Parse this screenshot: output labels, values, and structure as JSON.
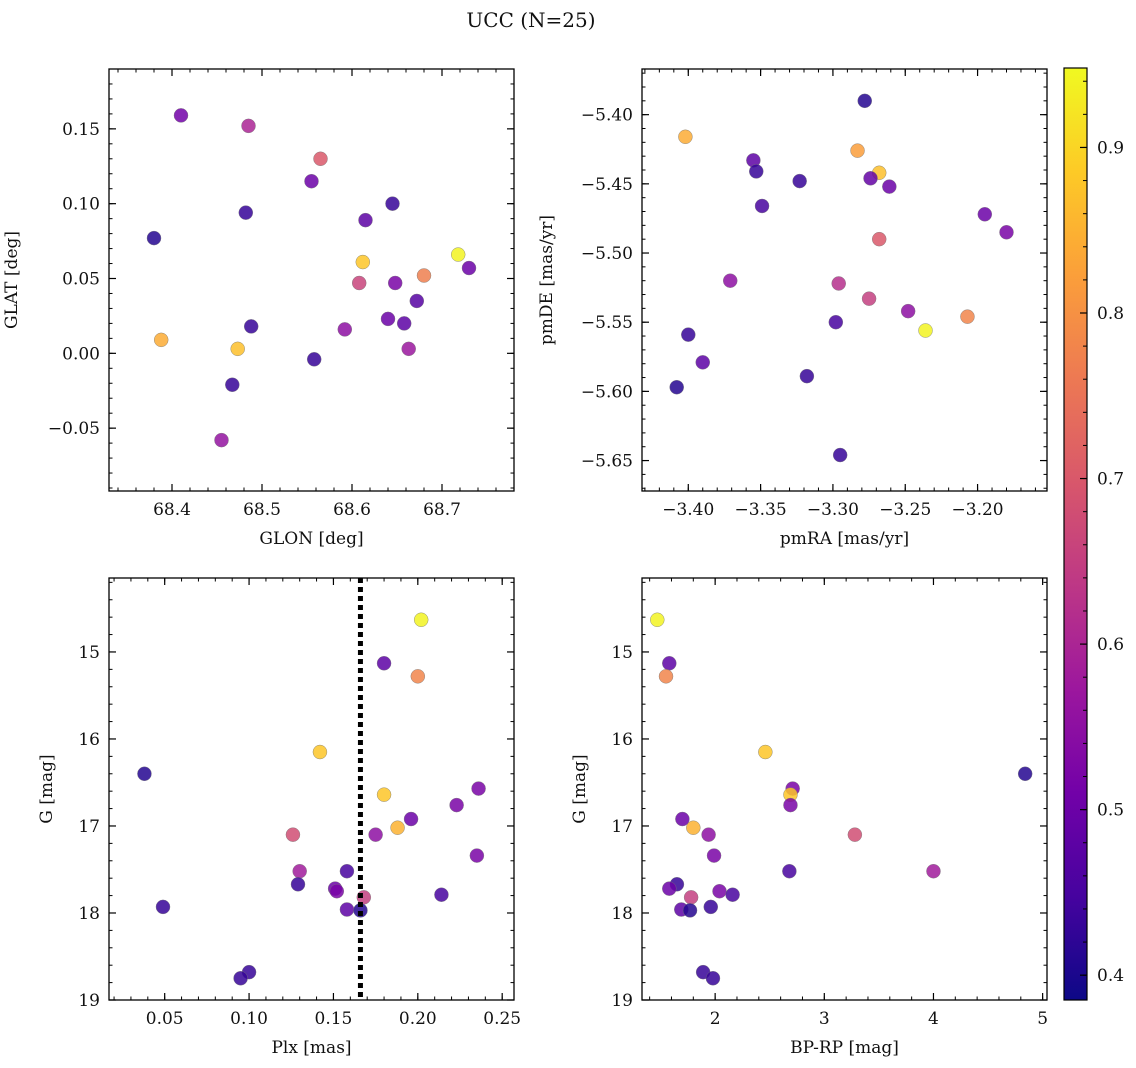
{
  "figure": {
    "title": "UCC (N=25)"
  },
  "colorbar": {
    "min": 0.385,
    "max": 0.948,
    "ticks": [
      0.4,
      0.5,
      0.6,
      0.7,
      0.8,
      0.9
    ],
    "tick_labels": [
      "0.4",
      "0.5",
      "0.6",
      "0.7",
      "0.8",
      "0.9"
    ],
    "colormap": "plasma"
  },
  "colormap_stops": [
    "#0d0887",
    "#46039f",
    "#7201a8",
    "#9c179e",
    "#bd3786",
    "#d8576b",
    "#ed7953",
    "#fb9f3a",
    "#fdca26",
    "#f0f921"
  ],
  "chart_data": [
    {
      "type": "scatter",
      "title": "",
      "xlabel": "GLON [deg]",
      "ylabel": "GLAT [deg]",
      "xlim": [
        68.33,
        68.78
      ],
      "ylim": [
        -0.092,
        0.19
      ],
      "xticks": [
        68.4,
        68.5,
        68.6,
        68.7
      ],
      "xtick_labels": [
        "68.4",
        "68.5",
        "68.6",
        "68.7"
      ],
      "yticks": [
        -0.05,
        0.0,
        0.05,
        0.1,
        0.15
      ],
      "ytick_labels": [
        "−0.05",
        "0.00",
        "0.05",
        "0.10",
        "0.15"
      ],
      "x": [
        68.41,
        68.485,
        68.565,
        68.555,
        68.38,
        68.482,
        68.645,
        68.615,
        68.718,
        68.73,
        68.612,
        68.608,
        68.68,
        68.648,
        68.672,
        68.64,
        68.658,
        68.592,
        68.488,
        68.663,
        68.388,
        68.473,
        68.558,
        68.467,
        68.455
      ],
      "y": [
        0.159,
        0.152,
        0.13,
        0.115,
        0.077,
        0.094,
        0.1,
        0.089,
        0.066,
        0.057,
        0.061,
        0.047,
        0.052,
        0.047,
        0.035,
        0.023,
        0.02,
        0.016,
        0.018,
        0.003,
        0.009,
        0.003,
        -0.004,
        -0.021,
        -0.058
      ],
      "c": [
        0.51,
        0.6,
        0.7,
        0.5,
        0.41,
        0.43,
        0.43,
        0.48,
        0.94,
        0.5,
        0.88,
        0.66,
        0.77,
        0.52,
        0.47,
        0.5,
        0.48,
        0.55,
        0.43,
        0.57,
        0.84,
        0.87,
        0.43,
        0.43,
        0.56
      ]
    },
    {
      "type": "scatter",
      "title": "",
      "xlabel": "pmRA [mas/yr]",
      "ylabel": "pmDE [mas/yr]",
      "xlim": [
        -3.432,
        -3.152
      ],
      "ylim": [
        -5.672,
        -5.367
      ],
      "xticks": [
        -3.4,
        -3.35,
        -3.3,
        -3.25,
        -3.2
      ],
      "xtick_labels": [
        "−3.40",
        "−3.35",
        "−3.30",
        "−3.25",
        "−3.20"
      ],
      "yticks": [
        -5.65,
        -5.6,
        -5.55,
        -5.5,
        -5.45,
        -5.4
      ],
      "ytick_labels": [
        "−5.65",
        "−5.60",
        "−5.55",
        "−5.50",
        "−5.45",
        "−5.40"
      ],
      "x": [
        -3.278,
        -3.402,
        -3.283,
        -3.268,
        -3.355,
        -3.353,
        -3.323,
        -3.274,
        -3.261,
        -3.349,
        -3.195,
        -3.18,
        -3.268,
        -3.371,
        -3.296,
        -3.275,
        -3.248,
        -3.236,
        -3.207,
        -3.298,
        -3.4,
        -3.39,
        -3.318,
        -3.408,
        -3.295
      ],
      "y": [
        -5.39,
        -5.416,
        -5.426,
        -5.442,
        -5.433,
        -5.441,
        -5.448,
        -5.446,
        -5.452,
        -5.466,
        -5.472,
        -5.485,
        -5.49,
        -5.52,
        -5.522,
        -5.533,
        -5.542,
        -5.556,
        -5.546,
        -5.55,
        -5.559,
        -5.579,
        -5.589,
        -5.597,
        -5.646
      ],
      "c": [
        0.41,
        0.84,
        0.82,
        0.87,
        0.48,
        0.43,
        0.43,
        0.49,
        0.5,
        0.45,
        0.5,
        0.52,
        0.7,
        0.55,
        0.62,
        0.65,
        0.55,
        0.94,
        0.78,
        0.45,
        0.43,
        0.48,
        0.43,
        0.41,
        0.43
      ]
    },
    {
      "type": "scatter",
      "title": "",
      "xlabel": "Plx [mas]",
      "ylabel": "G [mag]",
      "xlim": [
        0.017,
        0.257
      ],
      "ylim": [
        19.0,
        14.15
      ],
      "yinverted": true,
      "xticks": [
        0.05,
        0.1,
        0.15,
        0.2,
        0.25
      ],
      "xtick_labels": [
        "0.05",
        "0.10",
        "0.15",
        "0.20",
        "0.25"
      ],
      "yticks": [
        15,
        16,
        17,
        18,
        19
      ],
      "ytick_labels": [
        "15",
        "16",
        "17",
        "18",
        "19"
      ],
      "vline": {
        "x": 0.166,
        "style": "dotted",
        "color": "#000000"
      },
      "x": [
        0.202,
        0.18,
        0.2,
        0.142,
        0.038,
        0.236,
        0.18,
        0.188,
        0.223,
        0.196,
        0.126,
        0.175,
        0.235,
        0.13,
        0.158,
        0.129,
        0.151,
        0.152,
        0.168,
        0.214,
        0.049,
        0.158,
        0.166,
        0.1,
        0.095
      ],
      "y": [
        14.63,
        15.13,
        15.28,
        16.15,
        16.4,
        16.57,
        16.64,
        17.02,
        16.76,
        16.92,
        17.1,
        17.1,
        17.34,
        17.52,
        17.52,
        17.67,
        17.72,
        17.75,
        17.82,
        17.79,
        17.93,
        17.96,
        17.97,
        18.68,
        18.75
      ],
      "c": [
        0.94,
        0.48,
        0.78,
        0.88,
        0.41,
        0.52,
        0.88,
        0.85,
        0.52,
        0.5,
        0.68,
        0.55,
        0.52,
        0.58,
        0.45,
        0.43,
        0.5,
        0.52,
        0.65,
        0.45,
        0.43,
        0.48,
        0.41,
        0.43,
        0.43
      ]
    },
    {
      "type": "scatter",
      "title": "",
      "xlabel": "BP-RP [mag]",
      "ylabel": "G [mag]",
      "xlim": [
        1.33,
        5.04
      ],
      "ylim": [
        19.0,
        14.15
      ],
      "yinverted": true,
      "xticks": [
        2,
        3,
        4,
        5
      ],
      "xtick_labels": [
        "2",
        "3",
        "4",
        "5"
      ],
      "yticks": [
        15,
        16,
        17,
        18,
        19
      ],
      "ytick_labels": [
        "15",
        "16",
        "17",
        "18",
        "19"
      ],
      "x": [
        1.47,
        1.58,
        1.55,
        2.46,
        4.84,
        2.71,
        2.69,
        1.8,
        2.69,
        1.7,
        3.28,
        1.94,
        1.99,
        4.0,
        2.68,
        1.65,
        1.58,
        2.04,
        1.78,
        2.16,
        1.96,
        1.69,
        1.77,
        1.89,
        1.98
      ],
      "y": [
        14.63,
        15.13,
        15.28,
        16.15,
        16.4,
        16.57,
        16.64,
        17.02,
        16.76,
        16.92,
        17.1,
        17.1,
        17.34,
        17.52,
        17.52,
        17.67,
        17.72,
        17.75,
        17.82,
        17.79,
        17.93,
        17.96,
        17.97,
        18.68,
        18.75
      ],
      "c": [
        0.94,
        0.48,
        0.78,
        0.88,
        0.41,
        0.52,
        0.88,
        0.85,
        0.52,
        0.5,
        0.68,
        0.55,
        0.52,
        0.58,
        0.45,
        0.43,
        0.5,
        0.52,
        0.65,
        0.45,
        0.43,
        0.48,
        0.41,
        0.43,
        0.43
      ]
    }
  ]
}
